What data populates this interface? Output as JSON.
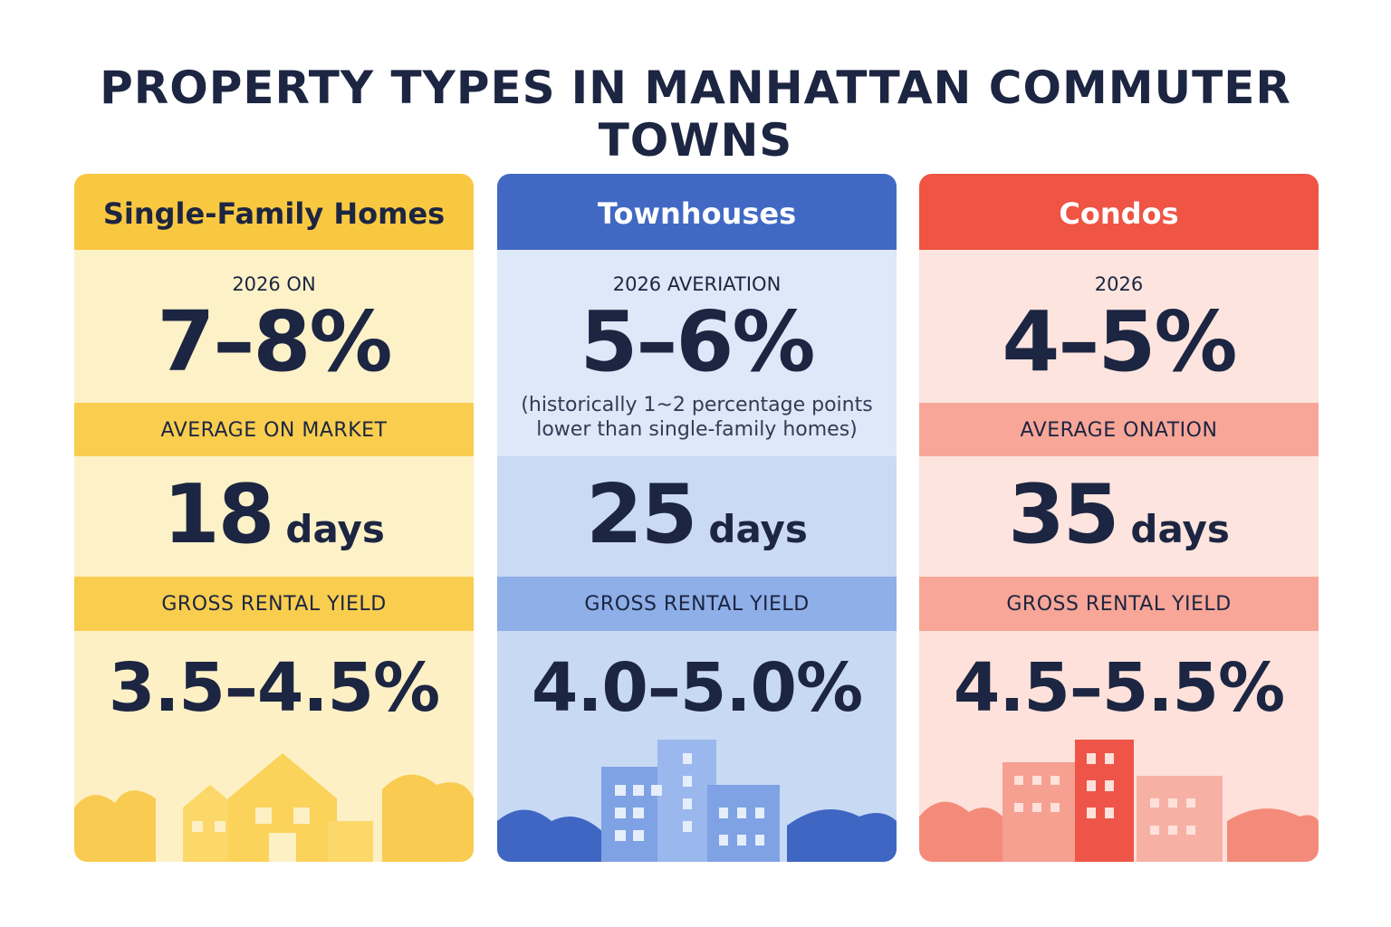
{
  "title": {
    "bold": "PROPERTY TYPES",
    "rest": "IN MANHATTAN COMMUTER TOWNS"
  },
  "cards": [
    {
      "header": "Single-Family Homes",
      "label": "2026 ON",
      "value": "7–8%",
      "band_label": "AVERAGE ON MARKET",
      "days": "18",
      "days_unit": "days",
      "yield_label": "GROSS RENTAL YIELD",
      "yield": "3.5–4.5%"
    },
    {
      "header": "Townhouses",
      "label": "2026 AVERIATION",
      "value": "5–6%",
      "note": [
        "(historically 1~2 percentage points",
        "lower than single-family homes)"
      ],
      "days": "25",
      "days_unit": "days",
      "yield_label": "GROSS RENTAL YIELD",
      "yield": "4.0–5.0%"
    },
    {
      "header": "Condos",
      "label": "2026",
      "value": "4–5%",
      "band_label": "AVERAGE ONATION",
      "days": "35",
      "days_unit": "days",
      "yield_label": "GROSS RENTAL YIELD",
      "yield": "4.5–5.5%"
    }
  ]
}
